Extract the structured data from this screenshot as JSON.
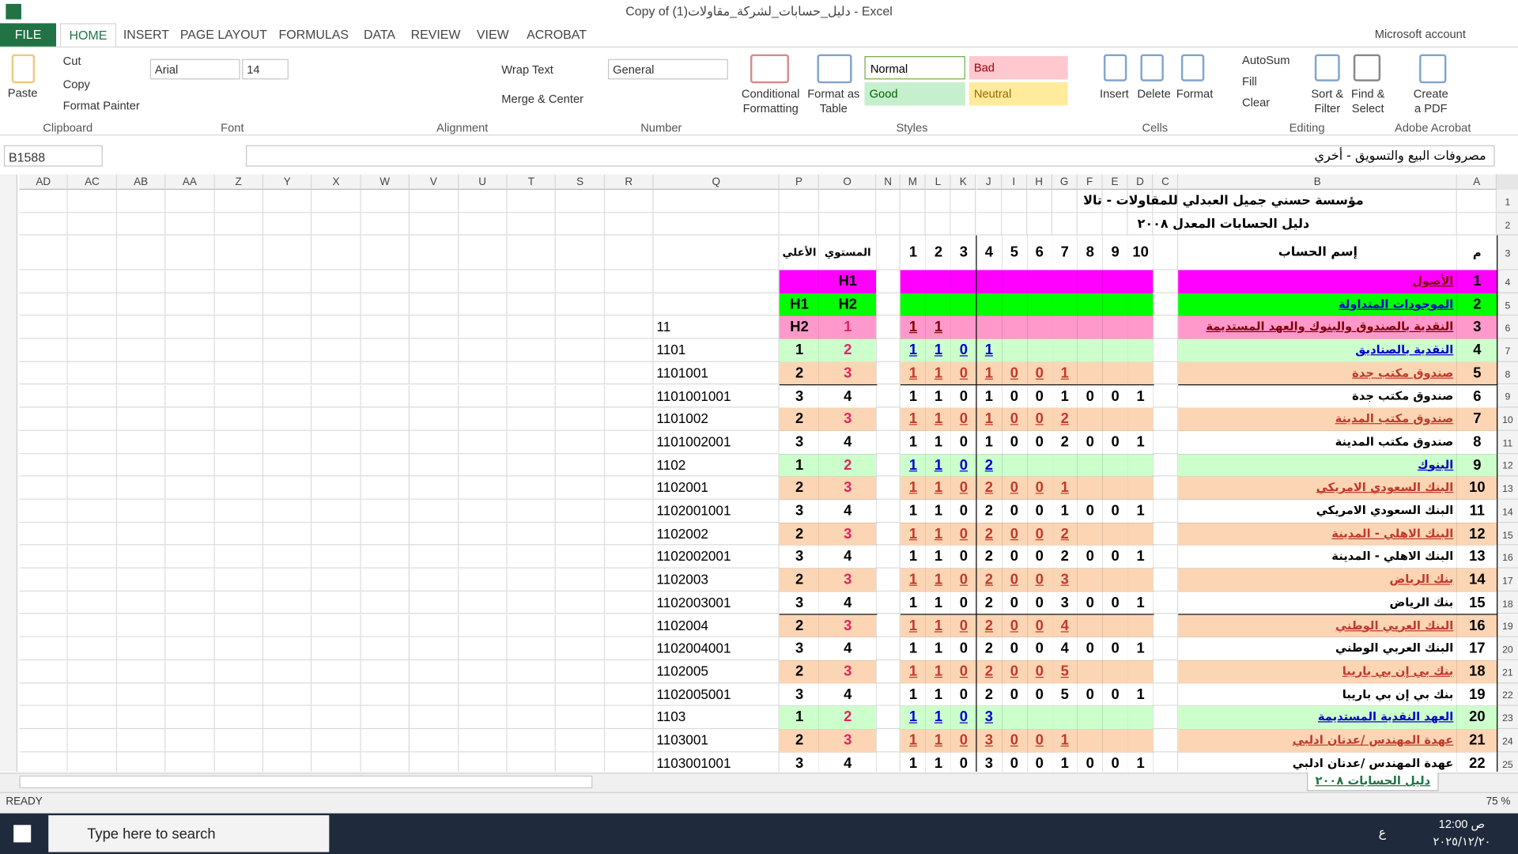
{
  "window": {
    "title": "Copy of دليل_حسابات_لشركة_مقاولات(1) - Excel",
    "account": "Microsoft account"
  },
  "tabs": [
    "FILE",
    "HOME",
    "INSERT",
    "PAGE LAYOUT",
    "FORMULAS",
    "DATA",
    "REVIEW",
    "VIEW",
    "ACROBAT"
  ],
  "ribbon": {
    "clipboard": {
      "label": "Clipboard",
      "paste": "Paste",
      "cut": "Cut",
      "copy": "Copy",
      "format_painter": "Format Painter"
    },
    "font": {
      "label": "Font",
      "name": "Arial",
      "size": 14
    },
    "alignment": {
      "label": "Alignment",
      "wrap": "Wrap Text",
      "merge": "Merge & Center"
    },
    "number": {
      "label": "Number",
      "format": "General"
    },
    "styles": {
      "label": "Styles",
      "conditional": "Conditional Formatting",
      "format_table": "Format as Table",
      "normal": "Normal",
      "bad": "Bad",
      "good": "Good",
      "neutral": "Neutral"
    },
    "cells": {
      "label": "Cells",
      "insert": "Insert",
      "delete": "Delete",
      "format": "Format"
    },
    "editing": {
      "label": "Editing",
      "autosum": "AutoSum",
      "fill": "Fill",
      "clear": "Clear",
      "sort": "Sort & Filter",
      "find": "Find & Select"
    },
    "acrobat": {
      "label": "Adobe Acrobat",
      "create": "Create a PDF"
    }
  },
  "formula_bar": {
    "name_box": "B1588",
    "formula": "مصروفات البيع والتسويق - أخري"
  },
  "sheet": {
    "columns": [
      "AD",
      "AC",
      "AB",
      "AA",
      "Z",
      "Y",
      "X",
      "W",
      "V",
      "U",
      "T",
      "S",
      "R",
      "Q",
      "P",
      "O",
      "N",
      "M",
      "L",
      "K",
      "J",
      "I",
      "H",
      "G",
      "F",
      "E",
      "D",
      "C",
      "B",
      "A"
    ],
    "row_numbers": [
      1,
      2,
      3,
      4,
      5,
      6,
      7,
      8,
      9,
      10,
      11,
      12,
      13,
      14,
      15,
      16,
      17,
      18,
      19,
      20,
      21,
      22,
      23,
      24,
      25
    ],
    "title": "مؤسسة حسني جميل العبدلي للمقاولات - تالا",
    "subtitle": "دليل الحسابات المعدل ٢٠٠٨",
    "header": {
      "a": "م",
      "b": "إسم الحساب",
      "levels": [
        1,
        2,
        3,
        4,
        5,
        6,
        7,
        8,
        9,
        10
      ],
      "o": "المستوي",
      "p": "الأعلي"
    },
    "rows": [
      {
        "a": 1,
        "b": "الأصول",
        "levels": [],
        "o": "H1",
        "fill": "#ff00ff",
        "link": "#7f0000"
      },
      {
        "a": 2,
        "b": "الموجودات المتداولة",
        "levels": [],
        "o": "H2",
        "p": "H1",
        "fill": "#00ff00",
        "link": "#0000cc"
      },
      {
        "a": 3,
        "b": "النقدية بالصندوق والبنوك والعهد المستديمة",
        "levels": [
          1,
          1
        ],
        "o": 1,
        "p": "H2",
        "q": 11,
        "fill": "#ff99cc",
        "link": "#7f0000"
      },
      {
        "a": 4,
        "b": "النقدية بالصناديق",
        "levels": [
          1,
          1,
          0,
          1
        ],
        "o": 2,
        "p": 1,
        "q": 1101,
        "fill": "#ccffcc",
        "link": "#0000cc"
      },
      {
        "a": 5,
        "b": "صندوق مكتب جدة",
        "levels": [
          1,
          1,
          0,
          1,
          0,
          0,
          1
        ],
        "o": 3,
        "p": 2,
        "q": 1101001,
        "fill": "#fcd5b4",
        "link": "#c0392b"
      },
      {
        "a": 6,
        "b": "صندوق مكتب جدة",
        "levels": [
          1,
          1,
          0,
          1,
          0,
          0,
          1,
          0,
          0,
          1
        ],
        "o": 4,
        "p": 3,
        "q": 1101001001
      },
      {
        "a": 7,
        "b": "صندوق مكتب المدينة",
        "levels": [
          1,
          1,
          0,
          1,
          0,
          0,
          2
        ],
        "o": 3,
        "p": 2,
        "q": 1101002,
        "fill": "#fcd5b4",
        "link": "#c0392b"
      },
      {
        "a": 8,
        "b": "صندوق مكتب المدينة",
        "levels": [
          1,
          1,
          0,
          1,
          0,
          0,
          2,
          0,
          0,
          1
        ],
        "o": 4,
        "p": 3,
        "q": 1101002001
      },
      {
        "a": 9,
        "b": "البنوك",
        "levels": [
          1,
          1,
          0,
          2
        ],
        "o": 2,
        "p": 1,
        "q": 1102,
        "fill": "#ccffcc",
        "link": "#0000cc"
      },
      {
        "a": 10,
        "b": "البنك السعودي الامريكي",
        "levels": [
          1,
          1,
          0,
          2,
          0,
          0,
          1
        ],
        "o": 3,
        "p": 2,
        "q": 1102001,
        "fill": "#fcd5b4",
        "link": "#c0392b"
      },
      {
        "a": 11,
        "b": "البنك السعودي الامريكي",
        "levels": [
          1,
          1,
          0,
          2,
          0,
          0,
          1,
          0,
          0,
          1
        ],
        "o": 4,
        "p": 3,
        "q": 1102001001
      },
      {
        "a": 12,
        "b": "البنك الاهلي - المدينة",
        "levels": [
          1,
          1,
          0,
          2,
          0,
          0,
          2
        ],
        "o": 3,
        "p": 2,
        "q": 1102002,
        "fill": "#fcd5b4",
        "link": "#c0392b"
      },
      {
        "a": 13,
        "b": "البنك الاهلي - المدينة",
        "levels": [
          1,
          1,
          0,
          2,
          0,
          0,
          2,
          0,
          0,
          1
        ],
        "o": 4,
        "p": 3,
        "q": 1102002001
      },
      {
        "a": 14,
        "b": "بنك الرياض",
        "levels": [
          1,
          1,
          0,
          2,
          0,
          0,
          3
        ],
        "o": 3,
        "p": 2,
        "q": 1102003,
        "fill": "#fcd5b4",
        "link": "#c0392b"
      },
      {
        "a": 15,
        "b": "بنك الرياض",
        "levels": [
          1,
          1,
          0,
          2,
          0,
          0,
          3,
          0,
          0,
          1
        ],
        "o": 4,
        "p": 3,
        "q": 1102003001
      },
      {
        "a": 16,
        "b": "البنك العربي الوطني",
        "levels": [
          1,
          1,
          0,
          2,
          0,
          0,
          4
        ],
        "o": 3,
        "p": 2,
        "q": 1102004,
        "fill": "#fcd5b4",
        "link": "#c0392b"
      },
      {
        "a": 17,
        "b": "البنك العربي الوطني",
        "levels": [
          1,
          1,
          0,
          2,
          0,
          0,
          4,
          0,
          0,
          1
        ],
        "o": 4,
        "p": 3,
        "q": 1102004001
      },
      {
        "a": 18,
        "b": "بنك بي إن بي باريبا",
        "levels": [
          1,
          1,
          0,
          2,
          0,
          0,
          5
        ],
        "o": 3,
        "p": 2,
        "q": 1102005,
        "fill": "#fcd5b4",
        "link": "#c0392b"
      },
      {
        "a": 19,
        "b": "بنك بي إن بي باريبا",
        "levels": [
          1,
          1,
          0,
          2,
          0,
          0,
          5,
          0,
          0,
          1
        ],
        "o": 4,
        "p": 3,
        "q": 1102005001
      },
      {
        "a": 20,
        "b": "العهد النقدية المستديمة",
        "levels": [
          1,
          1,
          0,
          3
        ],
        "o": 2,
        "p": 1,
        "q": 1103,
        "fill": "#ccffcc",
        "link": "#0000cc"
      },
      {
        "a": 21,
        "b": "عهدة المهندس /عدنان ادلبي",
        "levels": [
          1,
          1,
          0,
          3,
          0,
          0,
          1
        ],
        "o": 3,
        "p": 2,
        "q": 1103001,
        "fill": "#fcd5b4",
        "link": "#c0392b"
      },
      {
        "a": 22,
        "b": "عهدة المهندس /عدنان ادلبي",
        "levels": [
          1,
          1,
          0,
          3,
          0,
          0,
          1,
          0,
          0,
          1
        ],
        "o": 4,
        "p": 3,
        "q": 1103001001
      }
    ],
    "tab": "دليل الحسابات ٢٠٠٨"
  },
  "status": {
    "mode": "READY",
    "zoom": "75 %"
  },
  "taskbar": {
    "search": "Type here to search",
    "time": "12:00 ص",
    "date": "٢٠٢٥/١٢/٢٠",
    "language": "ع"
  }
}
